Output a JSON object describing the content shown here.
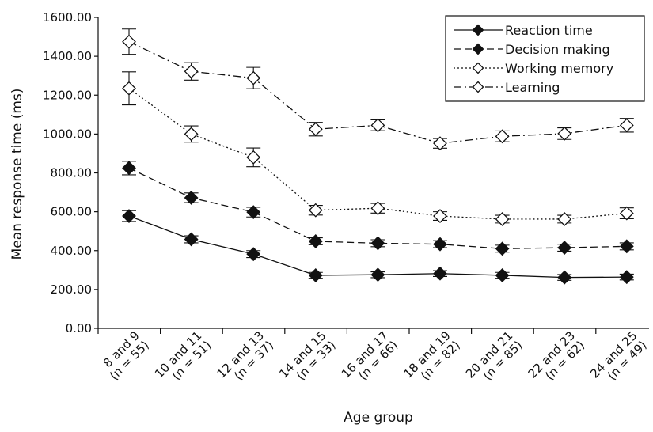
{
  "chart_data": {
    "type": "line",
    "title": "",
    "xlabel": "Age group",
    "ylabel": "Mean response time (ms)",
    "ylim": [
      0,
      1600
    ],
    "yticks": [
      "0.00",
      "200.00",
      "400.00",
      "600.00",
      "800.00",
      "1000.00",
      "1200.00",
      "1400.00",
      "1600.00"
    ],
    "categories": [
      [
        "8 and 9",
        "(n = 55)"
      ],
      [
        "10 and 11",
        "(n = 51)"
      ],
      [
        "12 and 13",
        "(n = 37)"
      ],
      [
        "14 and 15",
        "(n = 33)"
      ],
      [
        "16 and 17",
        "(n = 66)"
      ],
      [
        "18 and 19",
        "(n = 82)"
      ],
      [
        "20 and 21",
        "(n = 85)"
      ],
      [
        "22 and 23",
        "(n = 62)"
      ],
      [
        "24 and 25",
        "(n = 49)"
      ]
    ],
    "legend_position": "top-right",
    "grid": false,
    "series": [
      {
        "name": "Reaction time",
        "marker": "filled-diamond",
        "dash": "solid",
        "values": [
          578,
          458,
          382,
          273,
          276,
          282,
          273,
          262,
          264
        ],
        "errors": [
          28,
          18,
          18,
          15,
          15,
          15,
          15,
          15,
          15
        ]
      },
      {
        "name": "Decision making",
        "marker": "filled-diamond",
        "dash": "dashed",
        "values": [
          825,
          672,
          598,
          448,
          438,
          433,
          410,
          415,
          422
        ],
        "errors": [
          35,
          25,
          25,
          18,
          18,
          18,
          18,
          18,
          18
        ]
      },
      {
        "name": "Working memory",
        "marker": "open-diamond",
        "dash": "dotted",
        "values": [
          1235,
          1000,
          880,
          608,
          618,
          578,
          562,
          562,
          592
        ],
        "errors": [
          85,
          42,
          48,
          25,
          25,
          22,
          20,
          20,
          28
        ]
      },
      {
        "name": "Learning",
        "marker": "open-diamond",
        "dash": "dashdot",
        "values": [
          1475,
          1322,
          1288,
          1025,
          1045,
          952,
          988,
          1002,
          1045
        ],
        "errors": [
          65,
          45,
          55,
          35,
          28,
          25,
          28,
          30,
          35
        ]
      }
    ]
  }
}
